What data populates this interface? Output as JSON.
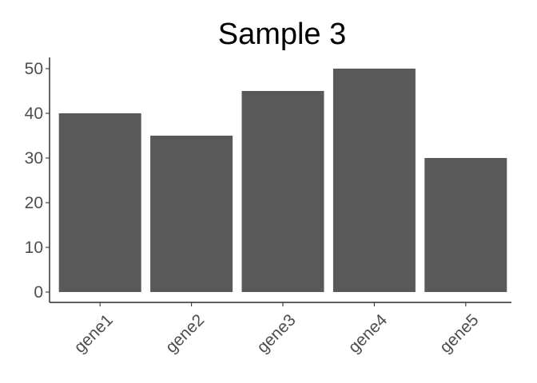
{
  "chart_data": {
    "type": "bar",
    "title": "Sample 3",
    "xlabel": "",
    "ylabel": "",
    "categories": [
      "gene1",
      "gene2",
      "gene3",
      "gene4",
      "gene5"
    ],
    "values": [
      40,
      35,
      45,
      50,
      30
    ],
    "ylim": [
      0,
      50
    ],
    "yticks": [
      0,
      10,
      20,
      30,
      40,
      50
    ],
    "grid": false,
    "bar_color": "#595959",
    "axis_color": "#000000",
    "tick_label_color": "#4d4d4d"
  }
}
